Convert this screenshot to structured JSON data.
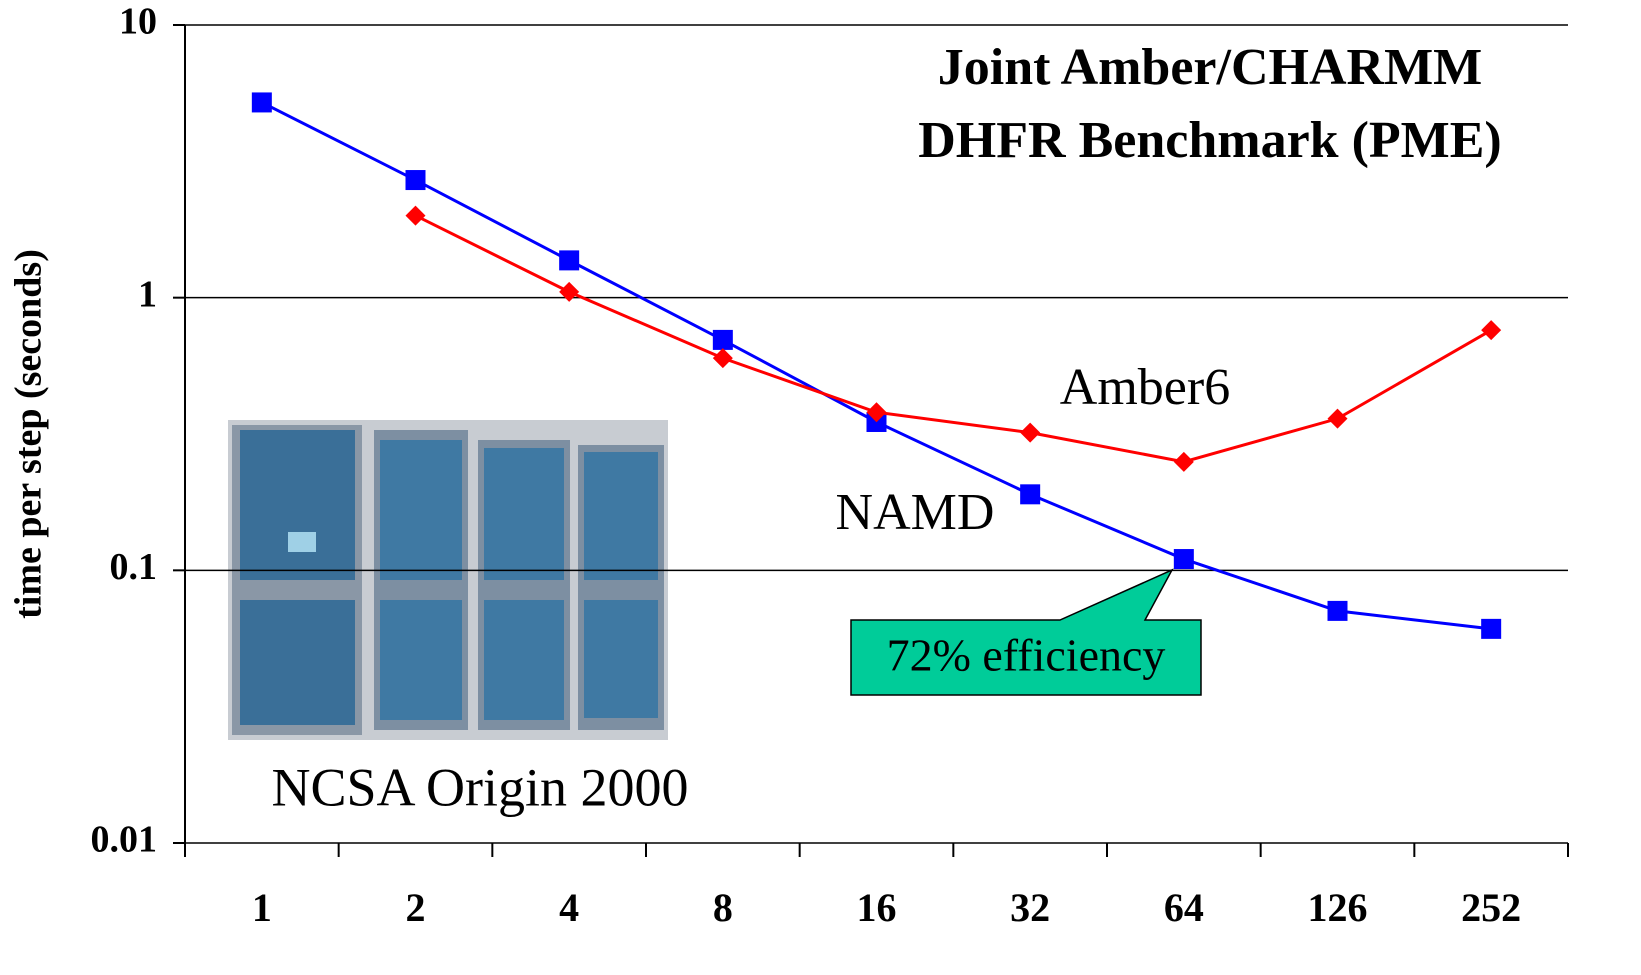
{
  "chart_data": {
    "type": "line",
    "title": [
      "Joint Amber/CHARMM",
      "DHFR Benchmark (PME)"
    ],
    "y_label": "time per step (seconds)",
    "categories": [
      "1",
      "2",
      "4",
      "8",
      "16",
      "32",
      "64",
      "126",
      "252"
    ],
    "series": [
      {
        "name": "NAMD",
        "color": "#0000ff",
        "marker": "square",
        "values": [
          5.2,
          2.7,
          1.37,
          0.7,
          0.35,
          0.19,
          0.11,
          0.071,
          0.061
        ]
      },
      {
        "name": "Amber6",
        "color": "#ff0000",
        "marker": "diamond",
        "values": [
          null,
          2.0,
          1.05,
          0.6,
          0.38,
          0.32,
          0.25,
          0.36,
          0.76
        ]
      }
    ],
    "ylim": [
      0.01,
      10
    ],
    "yticks": [
      10,
      1,
      0.1,
      0.01
    ],
    "y_log_scale": true,
    "grid": true,
    "annotations": {
      "callout": "72% efficiency",
      "image_caption": "NCSA Origin 2000"
    }
  }
}
